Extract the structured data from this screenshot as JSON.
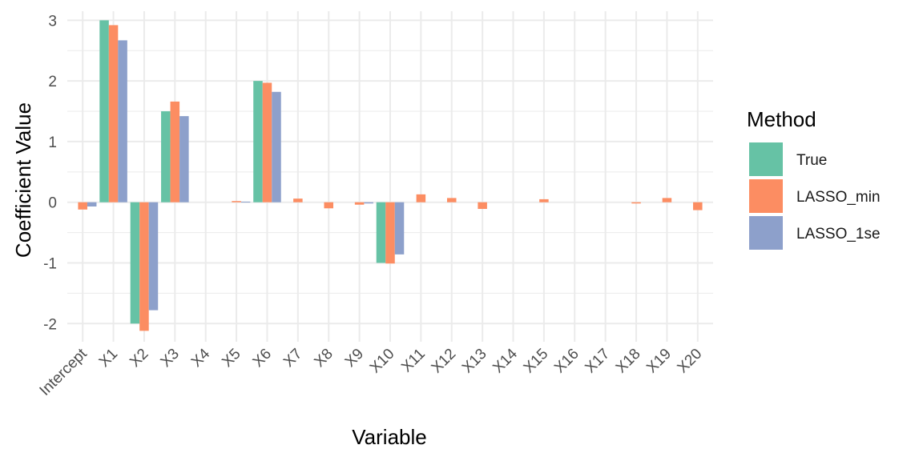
{
  "chart_data": {
    "type": "bar",
    "title": "",
    "xlabel": "Variable",
    "ylabel": "Coefficient Value",
    "ylim": [
      -2.3,
      3.15
    ],
    "yticks": [
      -2,
      -1,
      0,
      1,
      2,
      3
    ],
    "ytick_labels": [
      "-2",
      "-1",
      "0",
      "1",
      "2",
      "3"
    ],
    "grid": true,
    "legend_position": "right",
    "legend_title": "Method",
    "categories": [
      "Intercept",
      "X1",
      "X2",
      "X3",
      "X4",
      "X5",
      "X6",
      "X7",
      "X8",
      "X9",
      "X10",
      "X11",
      "X12",
      "X13",
      "X14",
      "X15",
      "X16",
      "X17",
      "X18",
      "X19",
      "X20"
    ],
    "series": [
      {
        "name": "True",
        "color": "#66C2A5",
        "values": [
          0,
          3,
          -2,
          1.5,
          0,
          0,
          2,
          0,
          0,
          0,
          -1,
          0,
          0,
          0,
          0,
          0,
          0,
          0,
          0,
          0,
          0
        ]
      },
      {
        "name": "LASSO_min",
        "color": "#FC8D62",
        "values": [
          -0.12,
          2.92,
          -2.12,
          1.66,
          0,
          0.02,
          1.97,
          0.06,
          -0.1,
          -0.04,
          -1.01,
          0.13,
          0.07,
          -0.11,
          0,
          0.05,
          0,
          0,
          -0.02,
          0.07,
          -0.13
        ]
      },
      {
        "name": "LASSO_1se",
        "color": "#8DA0CB",
        "values": [
          -0.07,
          2.67,
          -1.78,
          1.42,
          0,
          0.01,
          1.82,
          0,
          0,
          -0.02,
          -0.86,
          0,
          0,
          0,
          0,
          0,
          0,
          0,
          0,
          0,
          0
        ]
      }
    ]
  }
}
